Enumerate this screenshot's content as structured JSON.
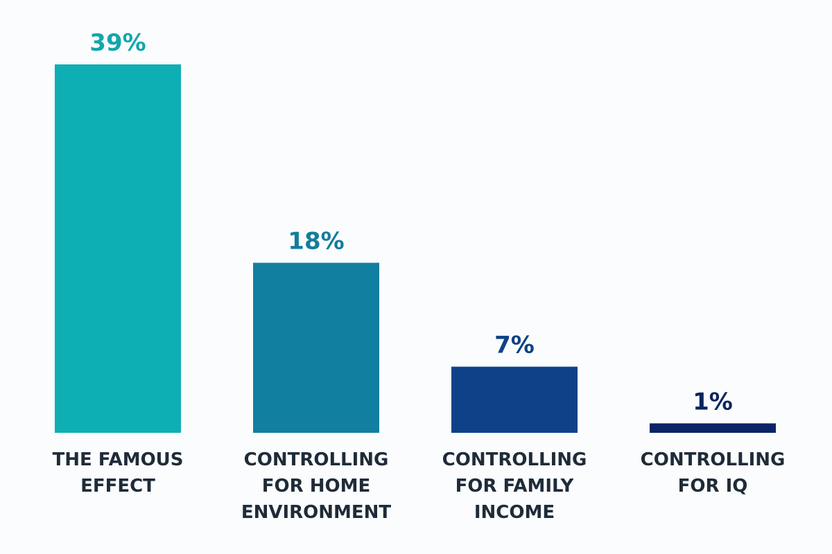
{
  "chart_data": {
    "type": "bar",
    "categories": [
      [
        "THE FAMOUS",
        "EFFECT"
      ],
      [
        "CONTROLLING",
        "FOR HOME",
        "ENVIRONMENT"
      ],
      [
        "CONTROLLING",
        "FOR FAMILY",
        "INCOME"
      ],
      [
        "CONTROLLING",
        "FOR IQ"
      ]
    ],
    "values": [
      39,
      18,
      7,
      1
    ],
    "value_labels": [
      "39%",
      "18%",
      "7%",
      "1%"
    ],
    "bar_colors": [
      "#0dafb5",
      "#117f9f",
      "#0d4288",
      "#0b2467"
    ],
    "label_colors": [
      "#13a6ad",
      "#147c9c",
      "#0e4185",
      "#0c2460"
    ],
    "category_label_color": "#1f2b38",
    "background": "#fbfcfd",
    "ylim": [
      0,
      39
    ],
    "grid": false,
    "axes_visible": false
  }
}
